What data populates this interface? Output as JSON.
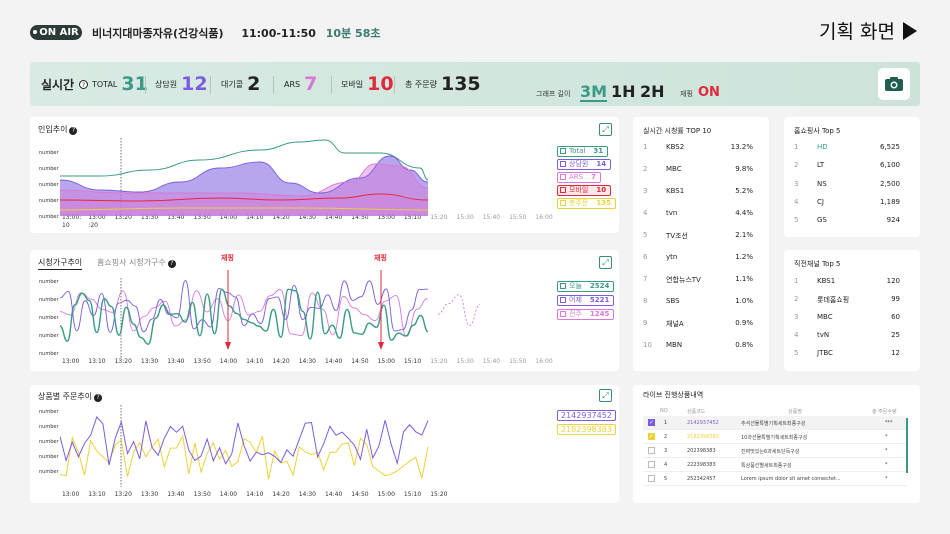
{
  "header": {
    "onair": "ON AIR",
    "program": "비너지대마종자유(건강식품)",
    "time": "11:00-11:50",
    "remaining": "10분 58초",
    "plan_screen": "기획 화면"
  },
  "stats": {
    "realtime_label": "실시간",
    "total_label": "TOTAL",
    "total": "31",
    "agent_label": "상담원",
    "agent": "12",
    "waiting_label": "대기콜",
    "waiting": "2",
    "ars_label": "ARS",
    "ars": "7",
    "mobile_label": "모바일",
    "mobile": "10",
    "orders_label": "총 주문량",
    "orders": "135",
    "graph_len_label": "그래프 길이",
    "graph_len_options": [
      "3M",
      "1H",
      "2H"
    ],
    "rebroadcast_label": "재핑",
    "rebroadcast": "ON"
  },
  "colors": {
    "teal": "#3a9a86",
    "purple": "#7b5ce0",
    "pink": "#d67ad6",
    "red": "#e0293a",
    "yellow": "#ecd138"
  },
  "inflow": {
    "title": "인입추이",
    "ylabels": [
      "number",
      "number",
      "number",
      "number",
      "number"
    ],
    "xlabels": [
      "13:00:\n10",
      "13:00\n:20",
      "13:20",
      "13:30",
      "13:40",
      "13:50",
      "14:00",
      "14:10",
      "14:20",
      "14:30",
      "14:40",
      "14:50",
      "15:00",
      "15:10",
      "15:20",
      "15:30",
      "15:40",
      "15:50",
      "16:00"
    ],
    "legend": [
      {
        "label": "Total",
        "value": "31"
      },
      {
        "label": "상담원",
        "value": "14"
      },
      {
        "label": "ARS",
        "value": "7"
      },
      {
        "label": "모바일",
        "value": "10"
      },
      {
        "label": "총주문",
        "value": "135"
      }
    ]
  },
  "viewers": {
    "tab_active": "시청가구추이",
    "tab_inactive": "홈쇼핑사 시청가구수",
    "markers": [
      "재핑",
      "재핑"
    ],
    "ylabels": [
      "number",
      "number",
      "number",
      "number",
      "number"
    ],
    "xlabels": [
      "13:00",
      "13:10",
      "13:20",
      "13:30",
      "13:40",
      "13:50",
      "14:00",
      "14:10",
      "14:20",
      "14:30",
      "14:40",
      "14:50",
      "15:00",
      "15:10",
      "15:20",
      "15:30",
      "15:40",
      "15:50",
      "16:00"
    ],
    "legend": [
      {
        "label": "오늘",
        "value": "2524"
      },
      {
        "label": "어제",
        "value": "5221"
      },
      {
        "label": "전주",
        "value": "1245"
      }
    ]
  },
  "orders": {
    "title": "상품별 주문추이",
    "ylabels": [
      "number",
      "number",
      "number",
      "number",
      "number"
    ],
    "xlabels": [
      "13:00",
      "13:10",
      "13:20",
      "13:30",
      "13:40",
      "13:50",
      "14:00",
      "14:10",
      "14:20",
      "14:30",
      "14:40",
      "14:50",
      "15:00",
      "15:10",
      "15:20"
    ],
    "legend": [
      "2142937452",
      "2182398383"
    ]
  },
  "top10": {
    "title": "실시간 시청률 TOP 10",
    "rows": [
      {
        "rank": "1",
        "name": "KBS2",
        "value": "13.2%"
      },
      {
        "rank": "2",
        "name": "MBC",
        "value": "9.8%"
      },
      {
        "rank": "3",
        "name": "KBS1",
        "value": "5.2%"
      },
      {
        "rank": "4",
        "name": "tvn",
        "value": "4.4%"
      },
      {
        "rank": "5",
        "name": "TV조선",
        "value": "2.1%"
      },
      {
        "rank": "6",
        "name": "ytn",
        "value": "1.2%"
      },
      {
        "rank": "7",
        "name": "연합뉴스TV",
        "value": "1.1%"
      },
      {
        "rank": "8",
        "name": "SBS",
        "value": "1.0%"
      },
      {
        "rank": "9",
        "name": "채널A",
        "value": "0.9%"
      },
      {
        "rank": "10",
        "name": "MBN",
        "value": "0.8%"
      }
    ]
  },
  "homeshop": {
    "title": "홈쇼핑사 Top 5",
    "rows": [
      {
        "rank": "1",
        "name": "HD",
        "value": "6,525"
      },
      {
        "rank": "2",
        "name": "LT",
        "value": "6,100"
      },
      {
        "rank": "3",
        "name": "NS",
        "value": "2,500"
      },
      {
        "rank": "4",
        "name": "CJ",
        "value": "1,189"
      },
      {
        "rank": "5",
        "name": "GS",
        "value": "924"
      }
    ]
  },
  "prevch": {
    "title": "직전채널 Top 5",
    "rows": [
      {
        "rank": "1",
        "name": "KBS1",
        "value": "120"
      },
      {
        "rank": "2",
        "name": "롯데홈쇼핑",
        "value": "99"
      },
      {
        "rank": "3",
        "name": "MBC",
        "value": "60"
      },
      {
        "rank": "4",
        "name": "tvN",
        "value": "25"
      },
      {
        "rank": "5",
        "name": "JTBC",
        "value": "12"
      }
    ]
  },
  "live": {
    "title": "라이브 진행상품내역",
    "headers": [
      "NO",
      "상품코드",
      "상품명",
      "총 주문수량"
    ],
    "rows": [
      {
        "no": "1",
        "code": "2142937452",
        "name": "추석선물특별기획세트최종구성",
        "qty": "***",
        "checked": true
      },
      {
        "no": "2",
        "code": "2182398383",
        "name": "10과선물특별기획세트최종구성",
        "qty": "*",
        "checked": true
      },
      {
        "no": "3",
        "code": "202398383",
        "name": "진짜맛있는6과세트단독구성",
        "qty": "*",
        "checked": false
      },
      {
        "no": "4",
        "code": "222398383",
        "name": "특상품선별세트최종구성",
        "qty": "*",
        "checked": false
      },
      {
        "no": "5",
        "code": "252342457",
        "name": "Lorem ipsum dolor sit amet consectet...",
        "qty": "*",
        "checked": false
      }
    ]
  }
}
